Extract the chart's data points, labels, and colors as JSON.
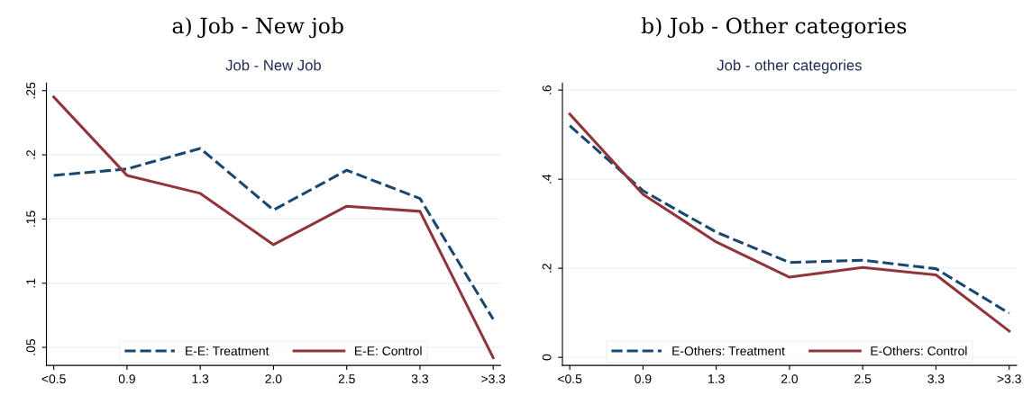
{
  "chart_data": [
    {
      "type": "line",
      "title": "a) Job - New job",
      "subtitle": "Job - New Job",
      "categories": [
        "<0.5",
        "0.9",
        "1.3",
        "2.0",
        "2.5",
        "3.3",
        ">3.3"
      ],
      "series": [
        {
          "name": "E-E: Treatment",
          "color": "#1a476f",
          "line_style": "dashed",
          "values": [
            0.184,
            0.189,
            0.205,
            0.157,
            0.188,
            0.166,
            0.072
          ]
        },
        {
          "name": "E-E: Control",
          "color": "#90353b",
          "line_style": "solid",
          "values": [
            0.245,
            0.184,
            0.17,
            0.13,
            0.16,
            0.156,
            0.042
          ]
        }
      ],
      "ylim": [
        0.036,
        0.256
      ],
      "yticks": [
        {
          "value": 0.05,
          "label": ".05"
        },
        {
          "value": 0.1,
          "label": ".1"
        },
        {
          "value": 0.15,
          "label": ".15"
        },
        {
          "value": 0.2,
          "label": ".2"
        },
        {
          "value": 0.25,
          "label": ".25"
        }
      ],
      "grid": "y",
      "legend": "bottom",
      "marker": "none"
    },
    {
      "type": "line",
      "title": "b) Job - Other categories",
      "subtitle": "Job - other categories",
      "categories": [
        "<0.5",
        "0.9",
        "1.3",
        "2.0",
        "2.5",
        "3.3",
        ">3.3"
      ],
      "series": [
        {
          "name": "E-Others: Treatment",
          "color": "#1a476f",
          "line_style": "dashed",
          "values": [
            0.52,
            0.374,
            0.281,
            0.213,
            0.218,
            0.199,
            0.099
          ]
        },
        {
          "name": "E-Others: Control",
          "color": "#90353b",
          "line_style": "solid",
          "values": [
            0.546,
            0.366,
            0.259,
            0.18,
            0.202,
            0.185,
            0.059
          ]
        }
      ],
      "ylim": [
        -0.018,
        0.616
      ],
      "yticks": [
        {
          "value": 0,
          "label": "0"
        },
        {
          "value": 0.2,
          "label": ".2"
        },
        {
          "value": 0.4,
          "label": ".4"
        },
        {
          "value": 0.6,
          "label": ".6"
        }
      ],
      "grid": "y",
      "legend": "bottom",
      "marker": "none"
    }
  ]
}
